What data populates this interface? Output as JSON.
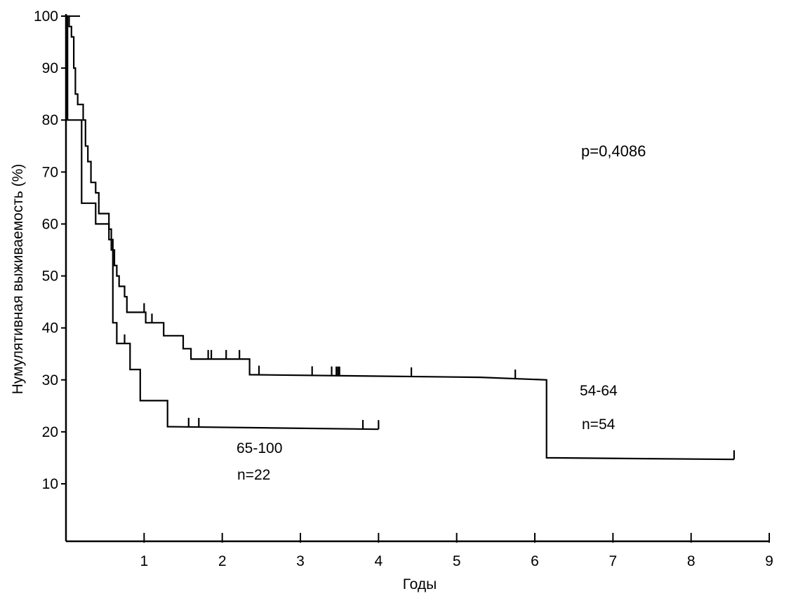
{
  "chart_data": {
    "type": "line",
    "step": true,
    "xlabel": "Годы",
    "ylabel": "Нумулятивная выживаемость (%)",
    "xlim": [
      0,
      9
    ],
    "ylim": [
      0,
      100
    ],
    "x_ticks": [
      1,
      2,
      3,
      4,
      5,
      6,
      7,
      8,
      9
    ],
    "y_ticks": [
      10,
      20,
      30,
      40,
      50,
      60,
      70,
      80,
      90,
      100
    ],
    "grid": false,
    "annotations": {
      "p_value": "p=0,4086",
      "group_a_range": "54-64",
      "group_a_n": "n=54",
      "group_b_range": "65-100",
      "group_b_n": "n=22"
    },
    "series": [
      {
        "name": "54-64",
        "color": "#000000",
        "points": [
          [
            0,
            100
          ],
          [
            0.04,
            100
          ],
          [
            0.04,
            98
          ],
          [
            0.07,
            98
          ],
          [
            0.07,
            96
          ],
          [
            0.1,
            96
          ],
          [
            0.1,
            90
          ],
          [
            0.12,
            90
          ],
          [
            0.12,
            85
          ],
          [
            0.15,
            85
          ],
          [
            0.15,
            83
          ],
          [
            0.22,
            83
          ],
          [
            0.22,
            80
          ],
          [
            0.25,
            80
          ],
          [
            0.25,
            75
          ],
          [
            0.28,
            75
          ],
          [
            0.28,
            72
          ],
          [
            0.32,
            72
          ],
          [
            0.32,
            68
          ],
          [
            0.38,
            68
          ],
          [
            0.38,
            66
          ],
          [
            0.42,
            66
          ],
          [
            0.42,
            62
          ],
          [
            0.55,
            62
          ],
          [
            0.55,
            59
          ],
          [
            0.58,
            59
          ],
          [
            0.58,
            55
          ],
          [
            0.62,
            55
          ],
          [
            0.62,
            52
          ],
          [
            0.65,
            52
          ],
          [
            0.65,
            50
          ],
          [
            0.68,
            50
          ],
          [
            0.68,
            48
          ],
          [
            0.75,
            48
          ],
          [
            0.75,
            46
          ],
          [
            0.78,
            46
          ],
          [
            0.78,
            43
          ],
          [
            1.02,
            43
          ],
          [
            1.02,
            41
          ],
          [
            1.25,
            41
          ],
          [
            1.25,
            38.5
          ],
          [
            1.5,
            38.5
          ],
          [
            1.5,
            36
          ],
          [
            1.6,
            36
          ],
          [
            1.6,
            34
          ],
          [
            2.35,
            34
          ],
          [
            2.35,
            31
          ],
          [
            5.3,
            30.5
          ],
          [
            6.15,
            30
          ],
          [
            6.15,
            15
          ],
          [
            8.55,
            14.7
          ]
        ],
        "censor_x": [
          1.0,
          1.1,
          1.82,
          1.86,
          2.05,
          2.22,
          2.47,
          3.15,
          3.4,
          3.46,
          3.48,
          3.5,
          4.42,
          5.75,
          8.55
        ]
      },
      {
        "name": "65-100",
        "color": "#000000",
        "points": [
          [
            0,
            100
          ],
          [
            0.02,
            100
          ],
          [
            0.02,
            80
          ],
          [
            0.2,
            80
          ],
          [
            0.2,
            64
          ],
          [
            0.38,
            64
          ],
          [
            0.38,
            60
          ],
          [
            0.55,
            60
          ],
          [
            0.55,
            57
          ],
          [
            0.6,
            57
          ],
          [
            0.6,
            41
          ],
          [
            0.65,
            41
          ],
          [
            0.65,
            37
          ],
          [
            0.82,
            37
          ],
          [
            0.82,
            32
          ],
          [
            0.95,
            32
          ],
          [
            0.95,
            26
          ],
          [
            1.3,
            26
          ],
          [
            1.3,
            21
          ],
          [
            4.0,
            20.5
          ]
        ],
        "censor_x": [
          0.75,
          1.57,
          1.7,
          3.8,
          4.0
        ]
      }
    ]
  }
}
